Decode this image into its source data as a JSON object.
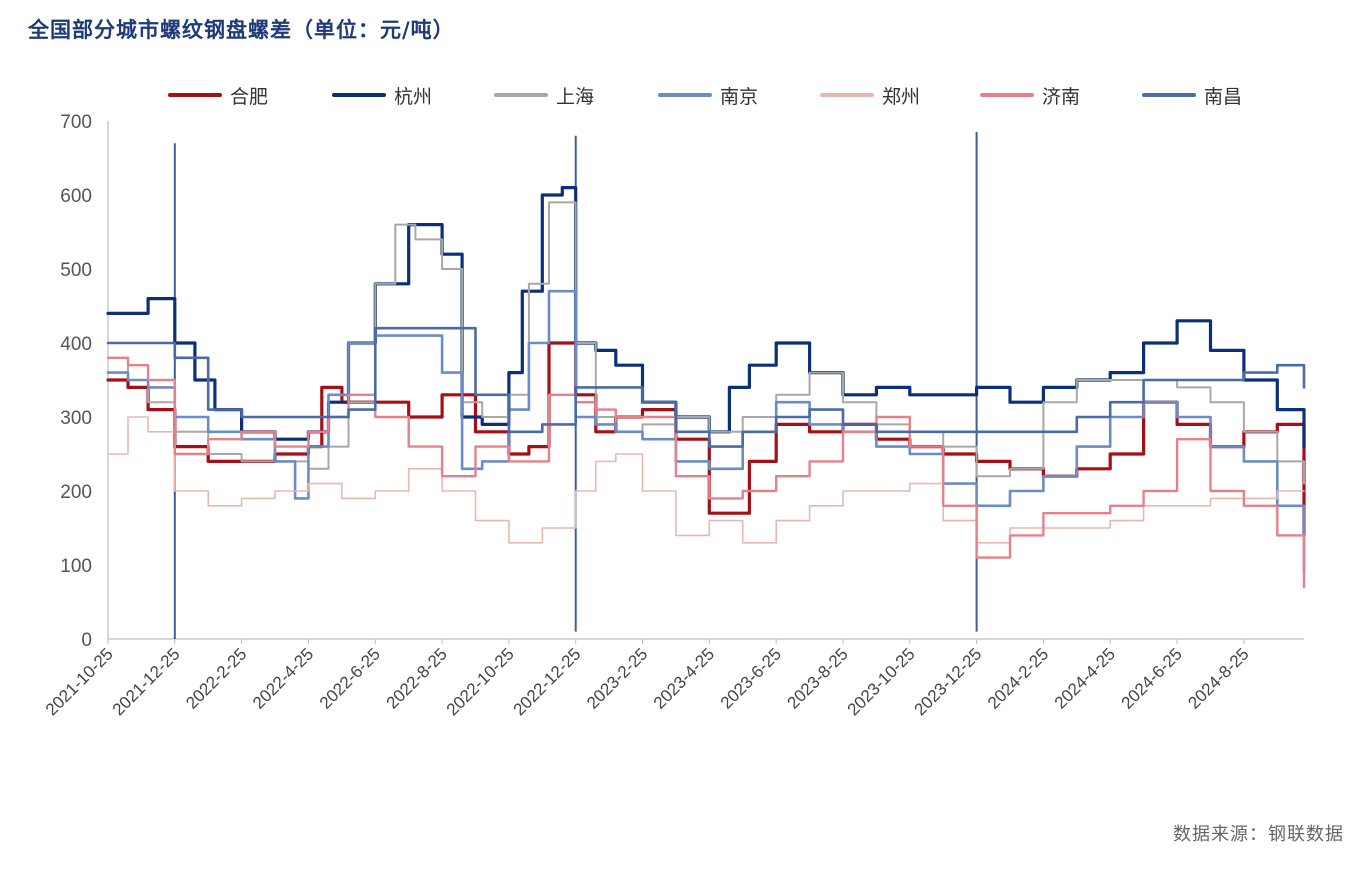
{
  "title": "全国部分城市螺纹钢盘螺差（单位：元/吨）",
  "source": "数据来源：钢联数据",
  "chart_data": {
    "type": "line",
    "title": "全国部分城市螺纹钢盘螺差（单位：元/吨）",
    "xlabel": "",
    "ylabel": "",
    "ylim": [
      0,
      700
    ],
    "yticks": [
      0,
      100,
      200,
      300,
      400,
      500,
      600,
      700
    ],
    "x_tick_labels": [
      "2021-10-25",
      "2021-12-25",
      "2022-2-25",
      "2022-4-25",
      "2022-6-25",
      "2022-8-25",
      "2022-10-25",
      "2022-12-25",
      "2023-2-25",
      "2023-4-25",
      "2023-6-25",
      "2023-8-25",
      "2023-10-25",
      "2023-12-25",
      "2024-2-25",
      "2024-4-25",
      "2024-6-25",
      "2024-8-25"
    ],
    "x_range": [
      0,
      17.9
    ],
    "grid": false,
    "legend_position": "top",
    "vertical_markers": [
      {
        "x": 1.0,
        "y_top": 670,
        "y_bottom": 0
      },
      {
        "x": 7.0,
        "y_top": 680,
        "y_bottom": 10
      },
      {
        "x": 13.0,
        "y_top": 685,
        "y_bottom": 10
      }
    ],
    "series": [
      {
        "name": "合肥",
        "color": "#a50f15",
        "width": 3.2,
        "x": [
          0,
          0.3,
          0.6,
          1.0,
          1.5,
          2.0,
          2.5,
          3.0,
          3.2,
          3.5,
          4.0,
          4.5,
          5.0,
          5.5,
          6.0,
          6.3,
          6.6,
          7.0,
          7.3,
          7.6,
          8.0,
          8.5,
          9.0,
          9.3,
          9.6,
          10.0,
          10.5,
          11.0,
          11.5,
          12.0,
          12.5,
          13.0,
          13.5,
          14.0,
          14.5,
          15.0,
          15.5,
          16.0,
          16.5,
          17.0,
          17.5,
          17.9
        ],
        "y": [
          350,
          340,
          310,
          260,
          240,
          240,
          250,
          260,
          340,
          320,
          320,
          300,
          330,
          280,
          250,
          260,
          400,
          330,
          280,
          300,
          310,
          270,
          170,
          170,
          240,
          290,
          280,
          290,
          270,
          260,
          250,
          240,
          230,
          220,
          230,
          250,
          320,
          290,
          260,
          280,
          290,
          140
        ]
      },
      {
        "name": "杭州",
        "color": "#0b2f7a",
        "width": 3.2,
        "x": [
          0,
          0.3,
          0.6,
          1.0,
          1.3,
          1.6,
          2.0,
          2.5,
          3.0,
          3.3,
          3.6,
          4.0,
          4.5,
          4.8,
          5.0,
          5.3,
          5.6,
          6.0,
          6.2,
          6.5,
          6.8,
          7.0,
          7.3,
          7.6,
          8.0,
          8.5,
          9.0,
          9.3,
          9.6,
          10.0,
          10.5,
          11.0,
          11.5,
          12.0,
          12.5,
          13.0,
          13.5,
          14.0,
          14.5,
          15.0,
          15.5,
          16.0,
          16.5,
          17.0,
          17.5,
          17.9
        ],
        "y": [
          440,
          440,
          460,
          400,
          350,
          310,
          280,
          270,
          280,
          320,
          400,
          480,
          560,
          560,
          520,
          300,
          290,
          360,
          470,
          600,
          610,
          400,
          390,
          370,
          320,
          300,
          280,
          340,
          370,
          400,
          360,
          330,
          340,
          330,
          330,
          340,
          320,
          340,
          350,
          360,
          400,
          430,
          390,
          350,
          310,
          260
        ]
      },
      {
        "name": "上海",
        "color": "#a8a8a8",
        "width": 2.0,
        "x": [
          0,
          0.3,
          0.6,
          1.0,
          1.5,
          2.0,
          2.5,
          3.0,
          3.3,
          3.6,
          4.0,
          4.3,
          4.6,
          5.0,
          5.3,
          5.6,
          6.0,
          6.3,
          6.6,
          7.0,
          7.3,
          7.6,
          8.0,
          8.5,
          9.0,
          9.5,
          10.0,
          10.5,
          11.0,
          11.5,
          12.0,
          12.5,
          13.0,
          13.5,
          14.0,
          14.5,
          15.0,
          15.5,
          16.0,
          16.5,
          17.0,
          17.5,
          17.9
        ],
        "y": [
          380,
          350,
          320,
          280,
          250,
          240,
          240,
          230,
          260,
          320,
          480,
          560,
          540,
          500,
          320,
          300,
          330,
          480,
          590,
          400,
          300,
          280,
          290,
          300,
          280,
          300,
          330,
          360,
          320,
          290,
          280,
          260,
          220,
          230,
          320,
          350,
          350,
          350,
          340,
          320,
          280,
          240,
          210
        ]
      },
      {
        "name": "南京",
        "color": "#6b8cc4",
        "width": 2.6,
        "x": [
          0,
          0.3,
          0.6,
          1.0,
          1.5,
          2.0,
          2.5,
          2.8,
          3.0,
          3.3,
          3.6,
          4.0,
          4.5,
          5.0,
          5.3,
          5.6,
          6.0,
          6.3,
          6.6,
          7.0,
          7.3,
          7.6,
          8.0,
          8.5,
          9.0,
          9.5,
          10.0,
          10.5,
          11.0,
          11.5,
          12.0,
          12.5,
          13.0,
          13.5,
          14.0,
          14.5,
          15.0,
          15.5,
          16.0,
          16.5,
          17.0,
          17.5,
          17.9
        ],
        "y": [
          360,
          350,
          340,
          300,
          280,
          270,
          240,
          190,
          260,
          330,
          400,
          410,
          410,
          360,
          230,
          240,
          310,
          400,
          470,
          300,
          290,
          280,
          270,
          240,
          230,
          280,
          320,
          290,
          280,
          260,
          250,
          210,
          180,
          200,
          220,
          260,
          300,
          320,
          300,
          260,
          240,
          180,
          90
        ]
      },
      {
        "name": "郑州",
        "color": "#e8b8b0",
        "width": 1.6,
        "x": [
          0,
          0.3,
          0.6,
          1.0,
          1.5,
          2.0,
          2.5,
          3.0,
          3.5,
          4.0,
          4.5,
          5.0,
          5.5,
          6.0,
          6.5,
          7.0,
          7.3,
          7.6,
          8.0,
          8.5,
          9.0,
          9.5,
          10.0,
          10.5,
          11.0,
          11.5,
          12.0,
          12.5,
          13.0,
          13.5,
          14.0,
          14.5,
          15.0,
          15.5,
          16.0,
          16.5,
          17.0,
          17.5,
          17.9
        ],
        "y": [
          250,
          300,
          280,
          200,
          180,
          190,
          200,
          210,
          190,
          200,
          230,
          200,
          160,
          130,
          150,
          200,
          240,
          250,
          200,
          140,
          160,
          130,
          160,
          180,
          200,
          200,
          210,
          160,
          130,
          150,
          150,
          150,
          160,
          180,
          180,
          190,
          190,
          200,
          200
        ]
      },
      {
        "name": "济南",
        "color": "#e8808a",
        "width": 2.4,
        "x": [
          0,
          0.3,
          0.6,
          1.0,
          1.5,
          2.0,
          2.5,
          3.0,
          3.3,
          3.6,
          4.0,
          4.5,
          5.0,
          5.5,
          6.0,
          6.3,
          6.6,
          7.0,
          7.3,
          7.6,
          8.0,
          8.5,
          9.0,
          9.5,
          10.0,
          10.5,
          11.0,
          11.5,
          12.0,
          12.5,
          13.0,
          13.5,
          14.0,
          14.5,
          15.0,
          15.5,
          16.0,
          16.5,
          17.0,
          17.5,
          17.9
        ],
        "y": [
          380,
          370,
          350,
          250,
          270,
          280,
          260,
          280,
          300,
          330,
          300,
          260,
          220,
          260,
          240,
          240,
          330,
          320,
          310,
          300,
          300,
          220,
          190,
          200,
          220,
          240,
          280,
          300,
          260,
          180,
          110,
          140,
          170,
          170,
          180,
          200,
          270,
          200,
          180,
          140,
          70
        ]
      },
      {
        "name": "南昌",
        "color": "#4a6aa8",
        "width": 2.6,
        "x": [
          0,
          0.3,
          0.6,
          1.0,
          1.5,
          2.0,
          2.5,
          3.0,
          3.3,
          3.6,
          4.0,
          4.5,
          5.0,
          5.5,
          6.0,
          6.5,
          7.0,
          7.3,
          7.6,
          8.0,
          8.5,
          9.0,
          9.5,
          10.0,
          10.5,
          11.0,
          11.5,
          12.0,
          12.5,
          13.0,
          13.5,
          14.0,
          14.5,
          15.0,
          15.5,
          16.0,
          16.5,
          17.0,
          17.5,
          17.9
        ],
        "y": [
          400,
          400,
          400,
          380,
          310,
          300,
          300,
          300,
          300,
          310,
          420,
          420,
          420,
          330,
          280,
          290,
          340,
          340,
          340,
          320,
          280,
          260,
          280,
          300,
          310,
          290,
          280,
          280,
          280,
          280,
          280,
          280,
          300,
          320,
          350,
          350,
          350,
          360,
          370,
          340
        ]
      }
    ]
  }
}
